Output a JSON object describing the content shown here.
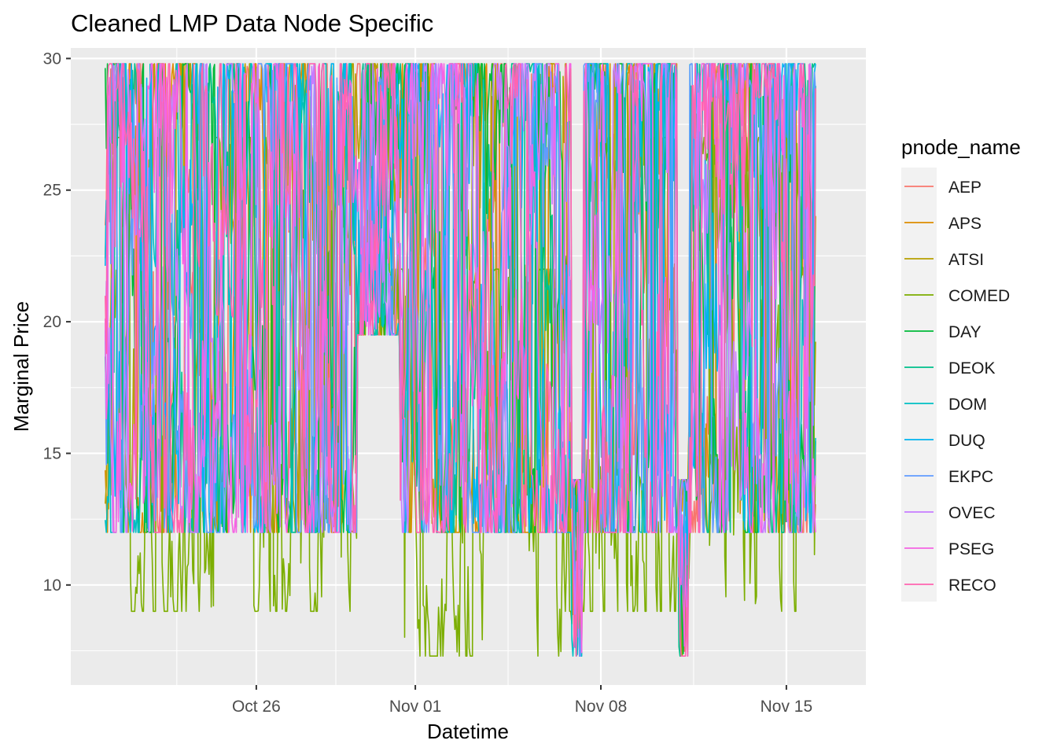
{
  "chart_data": {
    "type": "line",
    "title": "Cleaned LMP Data Node Specific",
    "xlabel": "Datetime",
    "ylabel": "Marginal Price",
    "x_range": [
      "2023-10-19",
      "2023-11-18"
    ],
    "xlim": [
      "2023-10-19",
      "2023-11-18"
    ],
    "ylim": [
      6.2,
      30.4
    ],
    "x_ticks": [
      {
        "date": "2023-10-26",
        "label": "Oct 26"
      },
      {
        "date": "2023-11-01",
        "label": "Nov 01"
      },
      {
        "date": "2023-11-08",
        "label": "Nov 08"
      },
      {
        "date": "2023-11-15",
        "label": "Nov 15"
      }
    ],
    "y_ticks": [
      10,
      15,
      20,
      25,
      30
    ],
    "grid": true,
    "legend": {
      "title": "pnode_name",
      "position": "right"
    },
    "series": [
      {
        "name": "AEP",
        "color": "#F8766D"
      },
      {
        "name": "APS",
        "color": "#DE8C00"
      },
      {
        "name": "ATSI",
        "color": "#B79F00"
      },
      {
        "name": "COMED",
        "color": "#7CAE00"
      },
      {
        "name": "DAY",
        "color": "#00BA38"
      },
      {
        "name": "DEOK",
        "color": "#00C08B"
      },
      {
        "name": "DOM",
        "color": "#00BFC4"
      },
      {
        "name": "DUQ",
        "color": "#00B4F0"
      },
      {
        "name": "EKPC",
        "color": "#619CFF"
      },
      {
        "name": "OVEC",
        "color": "#C77CFF"
      },
      {
        "name": "PSEG",
        "color": "#F564E3"
      },
      {
        "name": "RECO",
        "color": "#FF64B0"
      }
    ],
    "data_density": "hourly series, each ranging roughly between 7.3 and 29.8; COMED reaches the lowest values (about 7.3-12) during Oct 31 - Nov 06 and Nov 16-18; eastern nodes (PSEG, RECO) stay mostly between 12 and 29.8"
  }
}
